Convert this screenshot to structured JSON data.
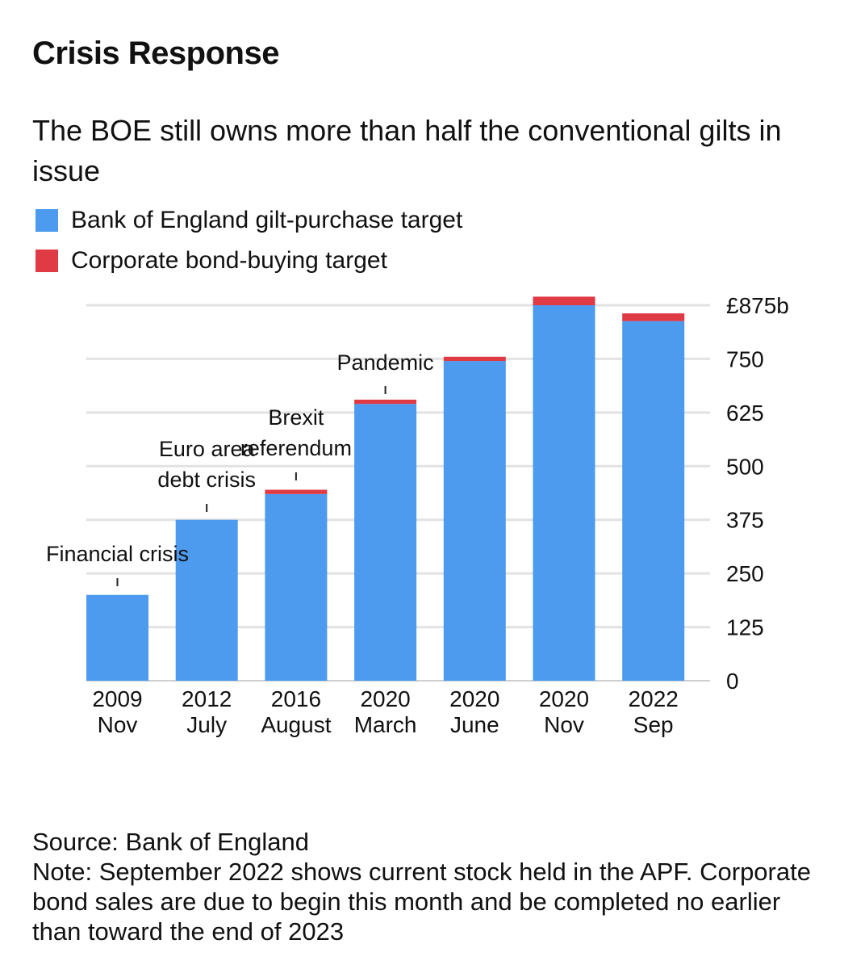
{
  "title": "Crisis Response",
  "subtitle": "The BOE still owns more than half the conventional gilts in issue",
  "legend": [
    {
      "label": "Bank of England gilt-purchase target",
      "color": "#4c9bef"
    },
    {
      "label": "Corporate bond-buying target",
      "color": "#e03a45"
    }
  ],
  "chart_data": {
    "type": "bar",
    "stacked": true,
    "categories": [
      {
        "year": "2009",
        "period": "Nov"
      },
      {
        "year": "2012",
        "period": "July"
      },
      {
        "year": "2016",
        "period": "August"
      },
      {
        "year": "2020",
        "period": "March"
      },
      {
        "year": "2020",
        "period": "June"
      },
      {
        "year": "2020",
        "period": "Nov"
      },
      {
        "year": "2022",
        "period": "Sep"
      }
    ],
    "series": [
      {
        "name": "Bank of England gilt-purchase target",
        "color": "#4c9bef",
        "values": [
          200,
          375,
          435,
          645,
          745,
          875,
          838
        ]
      },
      {
        "name": "Corporate bond-buying target",
        "color": "#e03a45",
        "values": [
          0,
          0,
          10,
          10,
          10,
          20,
          18
        ]
      }
    ],
    "y_ticks": [
      {
        "value": 0,
        "label": "0"
      },
      {
        "value": 125,
        "label": "125"
      },
      {
        "value": 250,
        "label": "250"
      },
      {
        "value": 375,
        "label": "375"
      },
      {
        "value": 500,
        "label": "500"
      },
      {
        "value": 625,
        "label": "625"
      },
      {
        "value": 750,
        "label": "750"
      },
      {
        "value": 875,
        "label": "£875b"
      }
    ],
    "ylim": [
      0,
      875
    ],
    "annotations": [
      {
        "lines": [
          "Financial crisis"
        ],
        "bar": 0
      },
      {
        "lines": [
          "Euro area",
          "debt crisis"
        ],
        "bar": 1
      },
      {
        "lines": [
          "Brexit",
          "referendum"
        ],
        "bar": 2
      },
      {
        "lines": [
          "Pandemic"
        ],
        "bar": 3
      }
    ],
    "grid": true,
    "y_axis_side": "right"
  },
  "source": "Source: Bank of England",
  "note": "Note: September 2022 shows current stock held in the APF. Corporate bond sales are due to begin this month and be completed no earlier than toward the end of 2023"
}
